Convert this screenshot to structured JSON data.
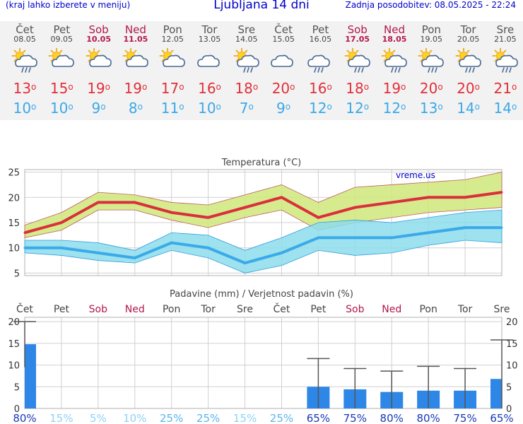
{
  "header": {
    "hint": "(kraj lahko izberete v meniju)",
    "title": "Ljubljana 14 dni",
    "updated": "Zadnja posodobitev: 08.05.2025 - 22:24"
  },
  "forecast": {
    "days": [
      {
        "name": "Čet",
        "date": "08.05",
        "weekend": false,
        "icon": "sun-cloud-rain-icon",
        "max": "13",
        "min": "10"
      },
      {
        "name": "Pet",
        "date": "09.05",
        "weekend": false,
        "icon": "sun-cloud-icon",
        "max": "15",
        "min": "10"
      },
      {
        "name": "Sob",
        "date": "10.05",
        "weekend": true,
        "icon": "sun-cloud-icon",
        "max": "19",
        "min": "9"
      },
      {
        "name": "Ned",
        "date": "11.05",
        "weekend": true,
        "icon": "sun-cloud-icon",
        "max": "19",
        "min": "8"
      },
      {
        "name": "Pon",
        "date": "12.05",
        "weekend": false,
        "icon": "sun-cloud-icon",
        "max": "17",
        "min": "11"
      },
      {
        "name": "Tor",
        "date": "13.05",
        "weekend": false,
        "icon": "cloud-icon",
        "max": "16",
        "min": "10"
      },
      {
        "name": "Sre",
        "date": "14.05",
        "weekend": false,
        "icon": "sun-cloud-rain-icon",
        "max": "18",
        "min": "7"
      },
      {
        "name": "Čet",
        "date": "15.05",
        "weekend": false,
        "icon": "cloud-icon",
        "max": "20",
        "min": "9"
      },
      {
        "name": "Pet",
        "date": "16.05",
        "weekend": false,
        "icon": "cloud-rain-icon",
        "max": "16",
        "min": "12"
      },
      {
        "name": "Sob",
        "date": "17.05",
        "weekend": true,
        "icon": "sun-cloud-rain-icon",
        "max": "18",
        "min": "12"
      },
      {
        "name": "Ned",
        "date": "18.05",
        "weekend": true,
        "icon": "sun-cloud-rain-icon",
        "max": "19",
        "min": "12"
      },
      {
        "name": "Pon",
        "date": "19.05",
        "weekend": false,
        "icon": "sun-cloud-rain-icon",
        "max": "20",
        "min": "13"
      },
      {
        "name": "Tor",
        "date": "20.05",
        "weekend": false,
        "icon": "sun-cloud-rain-icon",
        "max": "20",
        "min": "14"
      },
      {
        "name": "Sre",
        "date": "21.05",
        "weekend": false,
        "icon": "sun-cloud-rain-icon",
        "max": "21",
        "min": "14"
      }
    ]
  },
  "colors": {
    "weekend": "#b3174d",
    "max_line": "#d9303c",
    "max_band": "#cfe87a",
    "min_line": "#3aaae8",
    "min_band": "#8ddcec",
    "bar": "#2e86e6",
    "grid": "#d0d0d0"
  },
  "chart_data": [
    {
      "type": "line",
      "title": "Temperatura (°C)",
      "watermark": "vreme.us",
      "categories": [
        "08.05",
        "09.05",
        "10.05",
        "11.05",
        "12.05",
        "13.05",
        "14.05",
        "15.05",
        "16.05",
        "17.05",
        "18.05",
        "19.05",
        "20.05",
        "21.05"
      ],
      "ylim": [
        4.5,
        25.5
      ],
      "yticks": [
        5,
        10,
        15,
        20,
        25
      ],
      "series": [
        {
          "values": [
            13,
            15,
            19,
            19,
            17,
            16,
            18,
            20,
            16,
            18,
            19,
            20,
            20,
            21
          ],
          "band_low": [
            12,
            13.5,
            17.5,
            17.5,
            15.5,
            14,
            16,
            17.5,
            13.5,
            15,
            16,
            17,
            17.5,
            18
          ],
          "band_high": [
            14.5,
            17,
            21,
            20.5,
            19,
            18.5,
            20.5,
            22.5,
            19,
            22,
            22.5,
            23,
            23.5,
            25
          ]
        },
        {
          "values": [
            10,
            10,
            9,
            8,
            11,
            10,
            7,
            9,
            12,
            12,
            12,
            13,
            14,
            14
          ],
          "band_low": [
            9,
            8.5,
            7.5,
            7,
            9.5,
            8,
            5,
            6.5,
            9.5,
            8.5,
            9,
            10.5,
            11.5,
            11
          ],
          "band_high": [
            11.5,
            11.5,
            11,
            9.5,
            13,
            12.5,
            9.5,
            12,
            15,
            15.5,
            15,
            16,
            17,
            17.5
          ]
        }
      ],
      "grid": true
    },
    {
      "type": "bar",
      "title": "Padavine (mm) / Verjetnost padavin (%)",
      "categories": [
        "Čet",
        "Pet",
        "Sob",
        "Ned",
        "Pon",
        "Tor",
        "Sre",
        "Čet",
        "Pet",
        "Sob",
        "Ned",
        "Pon",
        "Tor",
        "Sre"
      ],
      "weekend": [
        false,
        false,
        true,
        true,
        false,
        false,
        false,
        false,
        false,
        true,
        true,
        false,
        false,
        false
      ],
      "ylim": [
        0,
        21
      ],
      "yticks": [
        0,
        5,
        10,
        15,
        20
      ],
      "values": [
        14.8,
        0,
        0,
        0,
        0,
        0,
        0,
        0,
        5,
        4.4,
        3.8,
        4.1,
        4.1,
        6.8
      ],
      "error_high": [
        20,
        0,
        0,
        0,
        0,
        0,
        0,
        0,
        11.5,
        9.2,
        8.6,
        9.7,
        9.2,
        15.8
      ],
      "error_low": [
        9.5,
        0,
        0,
        0,
        0,
        0,
        0,
        0,
        0,
        0,
        0,
        0,
        0,
        0
      ],
      "probability": [
        "80%",
        "15%",
        "5%",
        "10%",
        "25%",
        "25%",
        "15%",
        "25%",
        "65%",
        "75%",
        "80%",
        "80%",
        "75%",
        "65%"
      ],
      "probability_values": [
        80,
        15,
        5,
        10,
        25,
        25,
        15,
        25,
        65,
        75,
        80,
        80,
        75,
        65
      ],
      "grid": true
    }
  ]
}
